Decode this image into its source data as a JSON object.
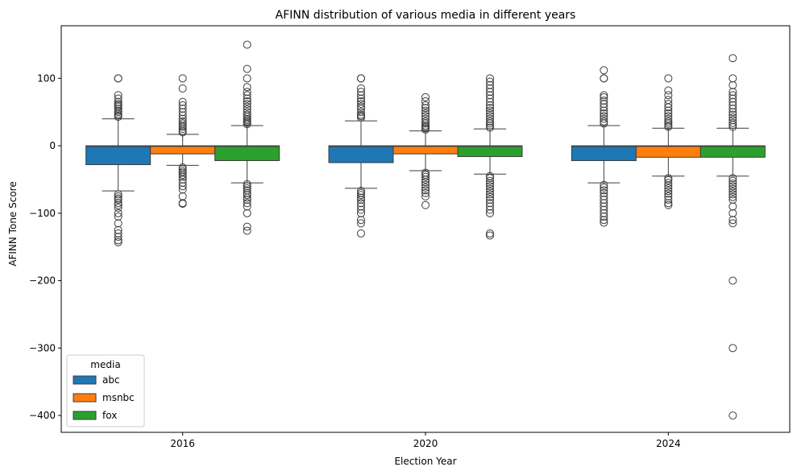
{
  "chart_data": {
    "type": "box",
    "title": "AFINN distribution of various media in different years",
    "xlabel": "Election Year",
    "ylabel": "AFINN Tone Score",
    "categories": [
      "2016",
      "2020",
      "2024"
    ],
    "ylim": [
      -425,
      178
    ],
    "yticks": [
      100,
      0,
      -100,
      -200,
      -300,
      -400
    ],
    "ytick_labels": [
      "100",
      "0",
      "−100",
      "−200",
      "−300",
      "−400"
    ],
    "grid": false,
    "legend": {
      "title": "media",
      "placement": "lower-left"
    },
    "series": [
      {
        "name": "abc",
        "color": "#1f77b4",
        "boxes": [
          {
            "q1": -28,
            "median": -1,
            "q3": 0,
            "whisker_low": -67,
            "whisker_high": 40,
            "outliers_high": [
              43,
              45,
              47,
              50,
              52,
              55,
              58,
              60,
              62,
              65,
              70,
              75,
              100,
              100
            ],
            "outliers_low": [
              -72,
              -75,
              -78,
              -80,
              -85,
              -88,
              -92,
              -100,
              -105,
              -115,
              -125,
              -130,
              -135,
              -140,
              -143
            ]
          },
          {
            "q1": -25,
            "median": -1,
            "q3": 0,
            "whisker_low": -63,
            "whisker_high": 37,
            "outliers_high": [
              42,
              44,
              46,
              50,
              55,
              58,
              62,
              66,
              70,
              75,
              80,
              85,
              100,
              100
            ],
            "outliers_low": [
              -67,
              -70,
              -73,
              -77,
              -80,
              -85,
              -90,
              -95,
              -100,
              -110,
              -115,
              -130
            ]
          },
          {
            "q1": -22,
            "median": -1,
            "q3": 0,
            "whisker_low": -55,
            "whisker_high": 30,
            "outliers_high": [
              33,
              36,
              40,
              44,
              48,
              52,
              57,
              62,
              67,
              72,
              75,
              100,
              100,
              112
            ],
            "outliers_low": [
              -58,
              -62,
              -66,
              -70,
              -75,
              -80,
              -85,
              -90,
              -95,
              -100,
              -105,
              -110,
              -114
            ]
          }
        ]
      },
      {
        "name": "msnbc",
        "color": "#ff7f0e",
        "boxes": [
          {
            "q1": -12,
            "median": -1,
            "q3": 0,
            "whisker_low": -29,
            "whisker_high": 17,
            "outliers_high": [
              20,
              22,
              25,
              28,
              30,
              33,
              36,
              40,
              45,
              50,
              55,
              60,
              65,
              85,
              100
            ],
            "outliers_low": [
              -32,
              -35,
              -38,
              -40,
              -43,
              -46,
              -50,
              -55,
              -60,
              -65,
              -75,
              -85,
              -86
            ]
          },
          {
            "q1": -12,
            "median": -1,
            "q3": 0,
            "whisker_low": -37,
            "whisker_high": 22,
            "outliers_high": [
              24,
              26,
              28,
              30,
              33,
              36,
              40,
              44,
              48,
              52,
              56,
              60,
              66,
              72
            ],
            "outliers_low": [
              -40,
              -43,
              -46,
              -50,
              -54,
              -58,
              -62,
              -66,
              -70,
              -75,
              -88
            ]
          },
          {
            "q1": -17,
            "median": -1,
            "q3": 0,
            "whisker_low": -45,
            "whisker_high": 26,
            "outliers_high": [
              28,
              30,
              33,
              36,
              40,
              44,
              48,
              52,
              57,
              62,
              68,
              75,
              82,
              100
            ],
            "outliers_low": [
              -48,
              -51,
              -55,
              -59,
              -63,
              -67,
              -71,
              -75,
              -80,
              -85,
              -88
            ]
          }
        ]
      },
      {
        "name": "fox",
        "color": "#2ca02c",
        "boxes": [
          {
            "q1": -22,
            "median": -1,
            "q3": 0,
            "whisker_low": -55,
            "whisker_high": 30,
            "outliers_high": [
              32,
              34,
              36,
              38,
              40,
              43,
              46,
              50,
              54,
              58,
              62,
              66,
              70,
              75,
              80,
              87,
              100,
              114,
              150
            ],
            "outliers_low": [
              -57,
              -60,
              -63,
              -66,
              -70,
              -73,
              -77,
              -80,
              -85,
              -90,
              -100,
              -120,
              -126
            ]
          },
          {
            "q1": -16,
            "median": -1,
            "q3": 0,
            "whisker_low": -42,
            "whisker_high": 25,
            "outliers_high": [
              27,
              30,
              33,
              36,
              40,
              44,
              48,
              52,
              56,
              60,
              65,
              70,
              75,
              80,
              85,
              90,
              95,
              100
            ],
            "outliers_low": [
              -45,
              -48,
              -52,
              -56,
              -60,
              -64,
              -68,
              -72,
              -76,
              -80,
              -85,
              -90,
              -95,
              -100,
              -130,
              -133
            ]
          },
          {
            "q1": -17,
            "median": -1,
            "q3": 0,
            "whisker_low": -45,
            "whisker_high": 26,
            "outliers_high": [
              28,
              31,
              34,
              38,
              42,
              46,
              50,
              55,
              60,
              65,
              70,
              75,
              80,
              90,
              100,
              130
            ],
            "outliers_low": [
              -48,
              -52,
              -56,
              -60,
              -64,
              -68,
              -72,
              -76,
              -80,
              -90,
              -100,
              -110,
              -115,
              -200,
              -300,
              -400
            ]
          }
        ]
      }
    ]
  }
}
